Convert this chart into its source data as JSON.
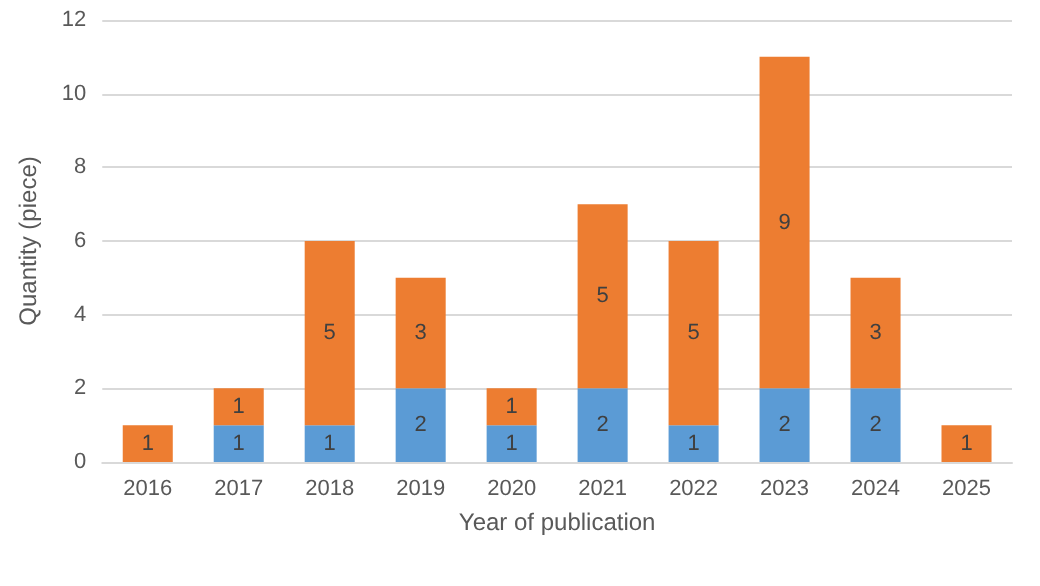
{
  "chart_data": {
    "type": "bar",
    "stacked": true,
    "xlabel": "Year of publication",
    "ylabel": "Quantity (piece)",
    "categories": [
      "2016",
      "2017",
      "2018",
      "2019",
      "2020",
      "2021",
      "2022",
      "2023",
      "2024",
      "2025"
    ],
    "series": [
      {
        "color": "#5b9bd5",
        "values": [
          null,
          1,
          1,
          2,
          1,
          2,
          1,
          2,
          2,
          null
        ]
      },
      {
        "color": "#ed7d31",
        "values": [
          1,
          1,
          5,
          3,
          1,
          5,
          5,
          9,
          3,
          1
        ]
      }
    ],
    "ylim": [
      0,
      12
    ],
    "yticks": [
      0,
      2,
      4,
      6,
      8,
      10,
      12
    ],
    "grid": "y",
    "data_labels": true
  }
}
